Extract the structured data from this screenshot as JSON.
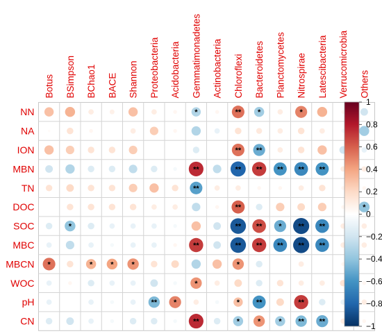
{
  "chart_data": {
    "type": "heatmap",
    "style": "correlation-circles",
    "columns": [
      "Botus",
      "BSimpson",
      "BChao1",
      "BACE",
      "Shannon",
      "Proteobacteria",
      "Acidobacteria",
      "Gemmatimonadetes",
      "Actinobacteria",
      "Chloroflexi",
      "Bacteroidetes",
      "Planctomycetes",
      "Nitrospirae",
      "Latescibacteria",
      "Verrucomicrobia",
      "Others"
    ],
    "rows": [
      "NN",
      "NA",
      "ION",
      "MBN",
      "TN",
      "DOC",
      "SOC",
      "MBC",
      "MBCN",
      "WOC",
      "pH",
      "CN"
    ],
    "values": [
      [
        0.3,
        0.35,
        0.1,
        0.08,
        0.3,
        0.1,
        0.05,
        -0.3,
        0.05,
        0.55,
        -0.35,
        0.1,
        0.5,
        0.35,
        0.05,
        -0.2
      ],
      [
        0.02,
        0.15,
        0.05,
        0.0,
        0.1,
        0.25,
        0.05,
        -0.3,
        -0.1,
        0.15,
        0.12,
        0.1,
        0.15,
        0.1,
        -0.05,
        -0.35
      ],
      [
        0.3,
        0.25,
        0.15,
        0.15,
        0.25,
        0.0,
        0.0,
        -0.15,
        0.0,
        0.55,
        -0.5,
        0.1,
        0.15,
        0.3,
        -0.2,
        -0.1
      ],
      [
        -0.2,
        -0.3,
        -0.15,
        -0.15,
        -0.25,
        -0.15,
        -0.05,
        0.75,
        -0.25,
        -0.8,
        0.7,
        -0.6,
        -0.65,
        -0.6,
        0.1,
        0.1
      ],
      [
        0.15,
        0.2,
        0.15,
        0.15,
        0.25,
        0.3,
        0.15,
        -0.55,
        0.1,
        0.1,
        0.05,
        0.05,
        0.1,
        0.15,
        0.05,
        0.05
      ],
      [
        0.0,
        0.15,
        0.15,
        0.15,
        0.15,
        0.1,
        0.1,
        -0.25,
        0.05,
        0.6,
        -0.15,
        0.25,
        0.2,
        0.25,
        0.05,
        -0.4
      ],
      [
        -0.15,
        -0.4,
        -0.15,
        -0.1,
        -0.1,
        -0.1,
        -0.05,
        0.3,
        -0.2,
        -0.85,
        0.65,
        -0.5,
        -0.9,
        -0.65,
        0.1,
        0.1
      ],
      [
        -0.1,
        -0.25,
        -0.1,
        -0.05,
        -0.1,
        -0.1,
        0.05,
        0.7,
        -0.2,
        -0.85,
        0.7,
        -0.65,
        -0.9,
        -0.65,
        0.1,
        0.1
      ],
      [
        0.55,
        0.15,
        0.35,
        0.4,
        0.45,
        0.15,
        0.2,
        -0.3,
        0.3,
        0.45,
        -0.15,
        0.0,
        0.1,
        0.0,
        0.05,
        0.0
      ],
      [
        -0.1,
        0.05,
        -0.15,
        -0.1,
        -0.1,
        -0.2,
        -0.05,
        0.45,
        0.1,
        0.2,
        -0.15,
        0.15,
        0.1,
        0.1,
        0.15,
        0.05
      ],
      [
        -0.1,
        0.0,
        -0.1,
        -0.05,
        -0.1,
        -0.45,
        0.5,
        0.1,
        -0.05,
        0.3,
        -0.6,
        0.2,
        0.7,
        -0.15,
        -0.1,
        0.1
      ],
      [
        -0.15,
        -0.2,
        -0.1,
        -0.05,
        -0.15,
        -0.15,
        -0.05,
        0.75,
        -0.15,
        -0.35,
        0.45,
        -0.35,
        -0.45,
        -0.5,
        0.1,
        0.05
      ]
    ],
    "significance": [
      [
        0,
        0,
        0,
        0,
        0,
        0,
        0,
        1,
        0,
        2,
        1,
        0,
        1,
        0,
        0,
        0
      ],
      [
        0,
        0,
        0,
        0,
        0,
        0,
        0,
        0,
        0,
        0,
        0,
        0,
        0,
        0,
        0,
        0
      ],
      [
        0,
        0,
        0,
        0,
        0,
        0,
        0,
        0,
        0,
        2,
        2,
        0,
        0,
        0,
        0,
        0
      ],
      [
        0,
        0,
        0,
        0,
        0,
        0,
        0,
        2,
        0,
        2,
        2,
        2,
        2,
        2,
        0,
        0
      ],
      [
        0,
        0,
        0,
        0,
        0,
        0,
        0,
        2,
        0,
        0,
        0,
        0,
        0,
        0,
        0,
        0
      ],
      [
        0,
        0,
        0,
        0,
        0,
        0,
        0,
        0,
        0,
        2,
        0,
        0,
        0,
        0,
        0,
        1
      ],
      [
        0,
        1,
        0,
        0,
        0,
        0,
        0,
        0,
        0,
        2,
        2,
        1,
        2,
        2,
        0,
        0
      ],
      [
        0,
        0,
        0,
        0,
        0,
        0,
        0,
        2,
        0,
        2,
        2,
        2,
        2,
        2,
        0,
        0
      ],
      [
        1,
        0,
        1,
        1,
        1,
        0,
        0,
        0,
        0,
        1,
        0,
        0,
        0,
        0,
        0,
        0
      ],
      [
        0,
        0,
        0,
        0,
        0,
        0,
        0,
        1,
        0,
        0,
        0,
        0,
        0,
        0,
        0,
        0
      ],
      [
        0,
        0,
        0,
        0,
        0,
        2,
        1,
        0,
        0,
        1,
        2,
        0,
        2,
        0,
        0,
        0
      ],
      [
        0,
        0,
        0,
        0,
        0,
        0,
        0,
        2,
        0,
        1,
        1,
        1,
        2,
        2,
        0,
        0
      ]
    ],
    "colorbar": {
      "range": [
        -1,
        1
      ],
      "ticks": [
        "1",
        "0.8",
        "0.6",
        "0.4",
        "0.2",
        "0",
        "−0.2",
        "−0.4",
        "−0.6",
        "−0.8",
        "−1"
      ],
      "tick_values": [
        1,
        0.8,
        0.6,
        0.4,
        0.2,
        0,
        -0.2,
        -0.4,
        -0.6,
        -0.8,
        -1
      ],
      "colors": [
        "#67001F",
        "#B2182B",
        "#D6604D",
        "#F4A582",
        "#FDDBC7",
        "#FFFFFF",
        "#D1E5F0",
        "#92C5DE",
        "#4393C3",
        "#2166AC",
        "#053061"
      ],
      "placement": "right"
    },
    "label_color": "#E00000",
    "grid": true
  }
}
